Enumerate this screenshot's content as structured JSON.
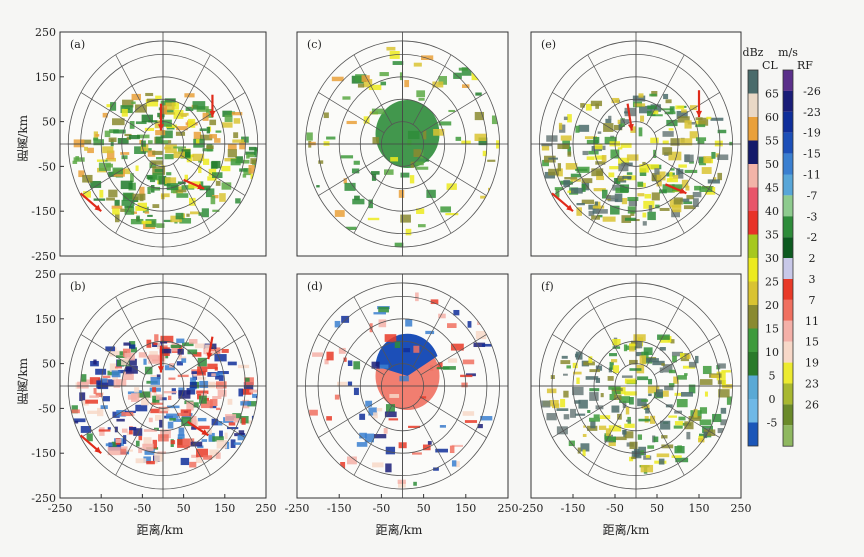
{
  "figure": {
    "xlabel": "距离/km",
    "ylabel": "距离/km"
  },
  "chart_data": [
    {
      "type": "heatmap",
      "panel_label": "(a)",
      "xlim": [
        -250,
        250
      ],
      "ylim": [
        -250,
        250
      ],
      "x_ticks": [],
      "y_ticks": [
        250,
        150,
        50,
        -50,
        -150,
        -250
      ],
      "arrows": true
    },
    {
      "type": "heatmap",
      "panel_label": "(c)",
      "xlim": [
        -250,
        250
      ],
      "ylim": [
        -250,
        250
      ],
      "x_ticks": [],
      "y_ticks": [],
      "arrows": false
    },
    {
      "type": "heatmap",
      "panel_label": "(e)",
      "xlim": [
        -250,
        250
      ],
      "ylim": [
        -250,
        250
      ],
      "x_ticks": [],
      "y_ticks": [],
      "arrows": true
    },
    {
      "type": "heatmap",
      "panel_label": "(b)",
      "xlim": [
        -250,
        250
      ],
      "ylim": [
        -250,
        250
      ],
      "x_ticks": [
        "-250",
        "-150",
        "-50",
        "50",
        "150",
        "250"
      ],
      "y_ticks": [
        250,
        150,
        50,
        -50,
        -150,
        -250
      ],
      "arrows": true
    },
    {
      "type": "heatmap",
      "panel_label": "(d)",
      "xlim": [
        -250,
        250
      ],
      "ylim": [
        -250,
        250
      ],
      "x_ticks": [
        "-250",
        "-150",
        "-50",
        "50",
        "150",
        "250"
      ],
      "y_ticks": [],
      "arrows": false
    },
    {
      "type": "heatmap",
      "panel_label": "(f)",
      "xlim": [
        -250,
        250
      ],
      "ylim": [
        -250,
        250
      ],
      "x_ticks": [
        "-250",
        "-150",
        "-50",
        "50",
        "150",
        "250"
      ],
      "y_ticks": [],
      "arrows": false
    }
  ],
  "colorbar_reflectivity": {
    "unit": "dBz",
    "top_label": "CL",
    "labels": [
      "65",
      "60",
      "55",
      "50",
      "45",
      "40",
      "35",
      "30",
      "25",
      "20",
      "15",
      "10",
      "5",
      "0",
      "-5"
    ],
    "colors": [
      "#4a6b6b",
      "#e9d8c6",
      "#e9a03a",
      "#141a6a",
      "#f2b4a8",
      "#e8556a",
      "#e83228",
      "#a6c81e",
      "#ecea1e",
      "#d9c332",
      "#8a8a30",
      "#3e9a3c",
      "#2a7a2a",
      "#5aa9d5",
      "#6fb8e6",
      "#1b56b8"
    ]
  },
  "colorbar_velocity": {
    "unit": "m/s",
    "top_label": "RF",
    "labels": [
      "-26",
      "-23",
      "-19",
      "-15",
      "-11",
      "-7",
      "-3",
      "-2",
      "2",
      "3",
      "7",
      "11",
      "15",
      "19",
      "23",
      "26"
    ],
    "colors": [
      "#5a2f8a",
      "#1a1d78",
      "#0f2e9a",
      "#1c4fb8",
      "#3a7fd0",
      "#58a6d8",
      "#8ecb8e",
      "#2e8c3a",
      "#0d5a20",
      "#c8c8e8",
      "#e83a28",
      "#f07060",
      "#f4b0a8",
      "#f7d8c8",
      "#ecea30",
      "#a8b830",
      "#6a8a2a",
      "#8fb860"
    ]
  }
}
